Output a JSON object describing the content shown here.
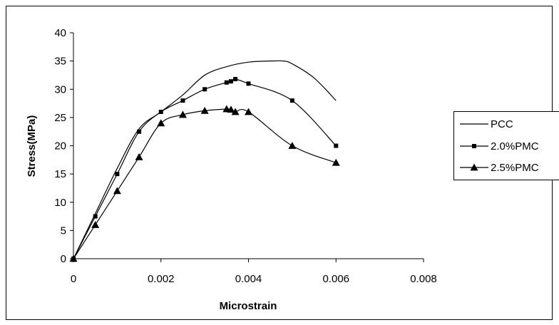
{
  "chart_data": {
    "type": "line",
    "xlabel": "Microstrain",
    "ylabel": "Stress(MPa)",
    "xlim": [
      0,
      0.008
    ],
    "ylim": [
      0,
      40
    ],
    "xticks": [
      0,
      0.002,
      0.004,
      0.006,
      0.008
    ],
    "xtick_labels": [
      "0",
      "0.002",
      "0.004",
      "0.006",
      "0.008"
    ],
    "yticks": [
      0,
      5,
      10,
      15,
      20,
      25,
      30,
      35,
      40
    ],
    "ytick_labels": [
      "0",
      "5",
      "10",
      "15",
      "20",
      "25",
      "30",
      "35",
      "40"
    ],
    "grid": false,
    "legend_position": "right",
    "series": [
      {
        "name": "PCC",
        "marker": "none",
        "points": [
          [
            0,
            0
          ],
          [
            0.0005,
            8
          ],
          [
            0.001,
            16
          ],
          [
            0.0015,
            23
          ],
          [
            0.002,
            26
          ],
          [
            0.0025,
            29
          ],
          [
            0.003,
            32.5
          ],
          [
            0.0035,
            34
          ],
          [
            0.004,
            34.8
          ],
          [
            0.0045,
            35
          ],
          [
            0.0048,
            35
          ],
          [
            0.005,
            34.5
          ],
          [
            0.0055,
            32
          ],
          [
            0.006,
            28
          ]
        ]
      },
      {
        "name": "2.0%PMC",
        "marker": "square",
        "points": [
          [
            0,
            0
          ],
          [
            0.0005,
            7.5
          ],
          [
            0.001,
            15
          ],
          [
            0.0015,
            22.5
          ],
          [
            0.002,
            26
          ],
          [
            0.0025,
            28
          ],
          [
            0.003,
            30
          ],
          [
            0.0035,
            31.2
          ],
          [
            0.0036,
            31.4
          ],
          [
            0.0037,
            31.8
          ],
          [
            0.004,
            31
          ],
          [
            0.005,
            28
          ],
          [
            0.006,
            20
          ]
        ]
      },
      {
        "name": "2.5%PMC",
        "marker": "triangle",
        "points": [
          [
            0,
            0
          ],
          [
            0.0005,
            6
          ],
          [
            0.001,
            12
          ],
          [
            0.0015,
            18
          ],
          [
            0.002,
            24
          ],
          [
            0.0025,
            25.5
          ],
          [
            0.003,
            26.2
          ],
          [
            0.0035,
            26.5
          ],
          [
            0.0036,
            26.4
          ],
          [
            0.0037,
            26
          ],
          [
            0.004,
            26
          ],
          [
            0.005,
            20
          ],
          [
            0.006,
            17
          ]
        ]
      }
    ]
  }
}
